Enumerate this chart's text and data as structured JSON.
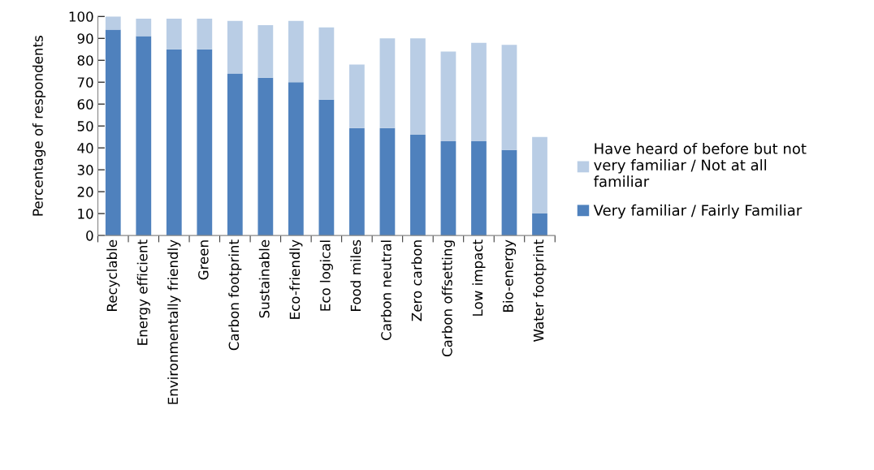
{
  "chart_data": {
    "type": "bar",
    "stacked": true,
    "ylabel": "Percentage of respondents",
    "categories": [
      "Recyclable",
      "Energy efficient",
      "Environmentally friendly",
      "Green",
      "Carbon footprint",
      "Sustainable",
      "Eco-friendly",
      "Eco logical",
      "Food miles",
      "Carbon neutral",
      "Zero carbon",
      "Carbon offsetting",
      "Low impact",
      "Bio-energy",
      "Water footprint"
    ],
    "series": [
      {
        "name": "Very familiar / Fairly Familiar",
        "color": "#4f81bd",
        "values": [
          94,
          91,
          85,
          85,
          74,
          72,
          70,
          62,
          49,
          49,
          46,
          43,
          43,
          39,
          10
        ]
      },
      {
        "name": "Have heard of before but not\nvery familiar / Not at all\nfamiliar",
        "color": "#b9cde5",
        "values": [
          6,
          8,
          14,
          14,
          24,
          24,
          28,
          33,
          29,
          41,
          44,
          41,
          45,
          48,
          35
        ]
      }
    ],
    "ylim": [
      0,
      100
    ],
    "yticks": [
      0,
      10,
      20,
      30,
      40,
      50,
      60,
      70,
      80,
      90,
      100
    ],
    "grid": false,
    "legend": "right"
  }
}
